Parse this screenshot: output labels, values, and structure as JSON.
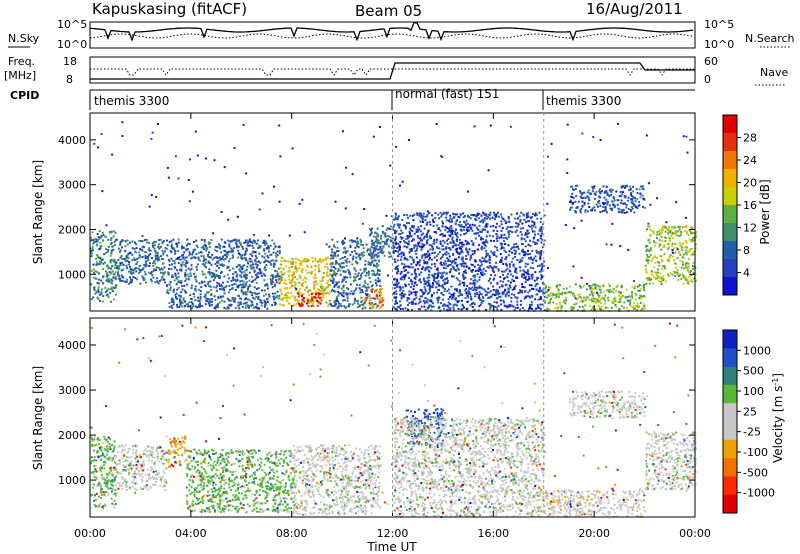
{
  "header": {
    "station": "Kapuskasing (fitACF)",
    "beam": "Beam 05",
    "date": "16/Aug/2011"
  },
  "top_panels": {
    "nsky_label": "N.Sky",
    "nsearch_label": "N.Search",
    "nsky_ticks": [
      "10^5",
      "10^0"
    ],
    "freq_label_1": "Freq.",
    "freq_label_2": "[MHz]",
    "freq_ticks": [
      "18",
      "8"
    ],
    "nave_label": "Nave",
    "nave_ticks": [
      "60",
      "0"
    ],
    "cpid_label": "CPID",
    "modes": [
      {
        "name": "themis 3300",
        "start_hour": 0
      },
      {
        "name": "normal (fast) 151",
        "start_hour": 12
      },
      {
        "name": "themis 3300",
        "start_hour": 18
      }
    ]
  },
  "colors": {
    "power_scale": [
      "#1010d0",
      "#2840c0",
      "#2060a8",
      "#408f6a",
      "#5fae42",
      "#c8d000",
      "#f0b000",
      "#f07800",
      "#e83010",
      "#e00000"
    ],
    "velocity_scale": [
      "#1020c0",
      "#2050c8",
      "#30807a",
      "#58b838",
      "#c8c8c8",
      "#c8c8c8",
      "#f0a000",
      "#f07000",
      "#ff2a00",
      "#e00000"
    ]
  },
  "chart_data": [
    {
      "type": "heatmap",
      "name": "power",
      "xlabel": "Time UT",
      "ylabel": "Slant Range [km]",
      "xlim": [
        0,
        24
      ],
      "ylim": [
        180,
        4600
      ],
      "x_ticks": [
        "00:00",
        "04:00",
        "08:00",
        "12:00",
        "16:00",
        "20:00",
        "00:00"
      ],
      "y_ticks": [
        1000,
        2000,
        3000,
        4000
      ],
      "colorbar": {
        "label": "Power [dB]",
        "ticks": [
          4,
          8,
          12,
          16,
          20,
          24,
          28
        ],
        "range": [
          0,
          30
        ]
      },
      "regions": [
        {
          "x": [
            0.0,
            1.0
          ],
          "y": [
            400,
            2000
          ],
          "level": 10
        },
        {
          "x": [
            1.0,
            3.0
          ],
          "y": [
            800,
            1800
          ],
          "level": 8
        },
        {
          "x": [
            3.0,
            7.5
          ],
          "y": [
            250,
            1800
          ],
          "level": 7
        },
        {
          "x": [
            7.5,
            9.5
          ],
          "y": [
            300,
            1400
          ],
          "level": 18
        },
        {
          "x": [
            8.2,
            9.2
          ],
          "y": [
            300,
            600
          ],
          "level": 27
        },
        {
          "x": [
            9.5,
            11.5
          ],
          "y": [
            250,
            1800
          ],
          "level": 8
        },
        {
          "x": [
            10.8,
            11.6
          ],
          "y": [
            250,
            700
          ],
          "level": 22
        },
        {
          "x": [
            11.0,
            12.0
          ],
          "y": [
            1400,
            2100
          ],
          "level": 8
        },
        {
          "x": [
            12.0,
            18.0
          ],
          "y": [
            200,
            2400
          ],
          "level": 5
        },
        {
          "x": [
            18.0,
            22.0
          ],
          "y": [
            200,
            800
          ],
          "level": 14
        },
        {
          "x": [
            19.0,
            22.0
          ],
          "y": [
            2400,
            3000
          ],
          "level": 6
        },
        {
          "x": [
            22.0,
            24.0
          ],
          "y": [
            800,
            2100
          ],
          "level": 15
        }
      ]
    },
    {
      "type": "heatmap",
      "name": "velocity",
      "xlabel": "Time UT",
      "ylabel": "Slant Range [km]",
      "xlim": [
        0,
        24
      ],
      "ylim": [
        180,
        4600
      ],
      "x_ticks": [
        "00:00",
        "04:00",
        "08:00",
        "12:00",
        "16:00",
        "20:00",
        "00:00"
      ],
      "y_ticks": [
        1000,
        2000,
        3000,
        4000
      ],
      "colorbar": {
        "label": "Velocity [m s^-1]",
        "ticks": [
          "1000",
          "500",
          "100",
          "25",
          "-25",
          "-100",
          "-500",
          "-1000"
        ]
      },
      "regions": [
        {
          "x": [
            0.0,
            1.0
          ],
          "y": [
            400,
            2000
          ],
          "level": "100"
        },
        {
          "x": [
            1.0,
            3.0
          ],
          "y": [
            800,
            1800
          ],
          "level": "25"
        },
        {
          "x": [
            3.0,
            3.8
          ],
          "y": [
            1300,
            2000
          ],
          "level": "-100"
        },
        {
          "x": [
            3.8,
            8.0
          ],
          "y": [
            300,
            1700
          ],
          "level": "100"
        },
        {
          "x": [
            8.0,
            11.5
          ],
          "y": [
            250,
            1800
          ],
          "level": "25"
        },
        {
          "x": [
            12.5,
            14.0
          ],
          "y": [
            1800,
            2600
          ],
          "level": "500"
        },
        {
          "x": [
            12.0,
            18.0
          ],
          "y": [
            200,
            2400
          ],
          "level": "25"
        },
        {
          "x": [
            18.0,
            22.0
          ],
          "y": [
            200,
            800
          ],
          "level": "-25"
        },
        {
          "x": [
            19.0,
            22.0
          ],
          "y": [
            2400,
            3000
          ],
          "level": "25"
        },
        {
          "x": [
            22.0,
            24.0
          ],
          "y": [
            800,
            2100
          ],
          "level": "25"
        }
      ]
    }
  ]
}
